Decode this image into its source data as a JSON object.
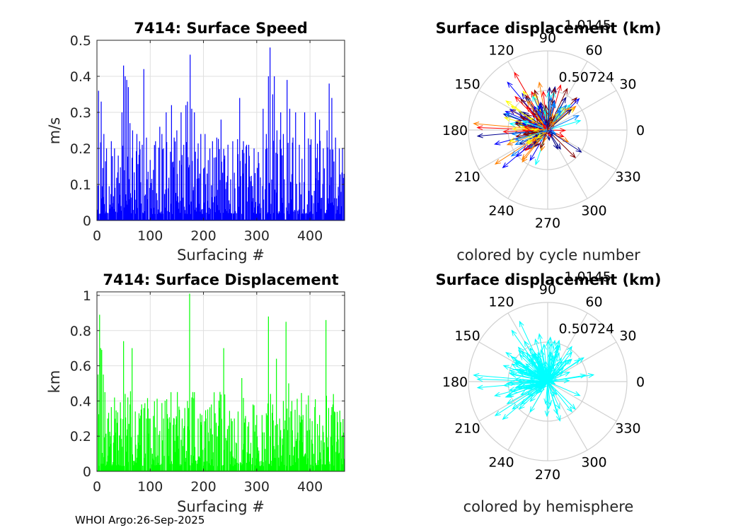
{
  "figure": {
    "footer": "WHOI Argo:26-Sep-2025"
  },
  "chart_data": [
    {
      "type": "bar",
      "id": "speed",
      "title": "7414: Surface Speed",
      "xlabel": "Surfacing #",
      "ylabel": "m/s",
      "xlim": [
        0,
        465
      ],
      "ylim": [
        0,
        0.5
      ],
      "xticks": [
        "0",
        "100",
        "200",
        "300",
        "400"
      ],
      "yticks": [
        "0",
        "0.1",
        "0.2",
        "0.3",
        "0.4",
        "0.5"
      ],
      "color": "#0000ff",
      "peaks": [
        [
          3,
          0.36
        ],
        [
          8,
          0.33
        ],
        [
          13,
          0.24
        ],
        [
          18,
          0.2
        ],
        [
          27,
          0.22
        ],
        [
          33,
          0.2
        ],
        [
          40,
          0.18
        ],
        [
          47,
          0.3
        ],
        [
          50,
          0.43
        ],
        [
          53,
          0.4
        ],
        [
          56,
          0.39
        ],
        [
          59,
          0.37
        ],
        [
          62,
          0.27
        ],
        [
          67,
          0.25
        ],
        [
          75,
          0.24
        ],
        [
          85,
          0.21
        ],
        [
          88,
          0.42
        ],
        [
          93,
          0.23
        ],
        [
          110,
          0.22
        ],
        [
          118,
          0.26
        ],
        [
          122,
          0.24
        ],
        [
          125,
          0.2
        ],
        [
          130,
          0.3
        ],
        [
          140,
          0.32
        ],
        [
          145,
          0.23
        ],
        [
          150,
          0.25
        ],
        [
          158,
          0.3
        ],
        [
          163,
          0.21
        ],
        [
          167,
          0.32
        ],
        [
          170,
          0.33
        ],
        [
          175,
          0.46
        ],
        [
          178,
          0.31
        ],
        [
          183,
          0.3
        ],
        [
          195,
          0.24
        ],
        [
          203,
          0.24
        ],
        [
          212,
          0.2
        ],
        [
          217,
          0.22
        ],
        [
          225,
          0.23
        ],
        [
          233,
          0.28
        ],
        [
          240,
          0.18
        ],
        [
          255,
          0.22
        ],
        [
          268,
          0.34
        ],
        [
          275,
          0.22
        ],
        [
          285,
          0.21
        ],
        [
          295,
          0.2
        ],
        [
          303,
          0.19
        ],
        [
          312,
          0.31
        ],
        [
          318,
          0.24
        ],
        [
          322,
          0.4
        ],
        [
          325,
          0.48
        ],
        [
          330,
          0.35
        ],
        [
          333,
          0.4
        ],
        [
          338,
          0.25
        ],
        [
          345,
          0.3
        ],
        [
          350,
          0.24
        ],
        [
          357,
          0.39
        ],
        [
          362,
          0.31
        ],
        [
          368,
          0.23
        ],
        [
          373,
          0.3
        ],
        [
          380,
          0.21
        ],
        [
          390,
          0.3
        ],
        [
          400,
          0.21
        ],
        [
          410,
          0.3
        ],
        [
          418,
          0.28
        ],
        [
          425,
          0.2
        ],
        [
          432,
          0.25
        ],
        [
          436,
          0.38
        ],
        [
          441,
          0.34
        ],
        [
          448,
          0.23
        ],
        [
          455,
          0.2
        ],
        [
          461,
          0.2
        ]
      ],
      "base": 0.06
    },
    {
      "type": "polar-quiver",
      "id": "rose_cycle",
      "title": "Surface displacement (km)",
      "caption": "colored by cycle number",
      "rmax": 1.0145,
      "ring_labels": [
        "0.50724",
        "1.0145"
      ],
      "angle_labels": [
        "0",
        "30",
        "60",
        "90",
        "120",
        "150",
        "180",
        "210",
        "240",
        "270",
        "300",
        "330"
      ],
      "colormap": [
        "#00008f",
        "#0000ff",
        "#0080ff",
        "#00ffff",
        "#ffff00",
        "#ff8000",
        "#ff0000",
        "#800000"
      ],
      "highlight_arrows": [
        [
          175,
          0.95
        ],
        [
          178,
          0.9
        ],
        [
          120,
          0.85
        ],
        [
          130,
          0.8
        ],
        [
          145,
          0.65
        ],
        [
          220,
          0.75
        ],
        [
          213,
          0.8
        ],
        [
          185,
          0.9
        ],
        [
          160,
          0.6
        ],
        [
          100,
          0.62
        ],
        [
          315,
          0.5
        ],
        [
          200,
          0.55
        ],
        [
          195,
          0.7
        ],
        [
          240,
          0.45
        ],
        [
          60,
          0.35
        ]
      ]
    },
    {
      "type": "bar",
      "id": "displacement",
      "title": "7414: Surface Displacement",
      "xlabel": "Surfacing #",
      "ylabel": "km",
      "xlim": [
        0,
        465
      ],
      "ylim": [
        0,
        1.02
      ],
      "xticks": [
        "0",
        "100",
        "200",
        "300",
        "400"
      ],
      "yticks": [
        "0",
        "0.2",
        "0.4",
        "0.6",
        "0.8",
        "1"
      ],
      "color": "#00ff00",
      "peaks": [
        [
          2,
          0.55
        ],
        [
          5,
          0.89
        ],
        [
          7,
          0.7
        ],
        [
          9,
          0.69
        ],
        [
          12,
          0.55
        ],
        [
          15,
          0.45
        ],
        [
          20,
          0.3
        ],
        [
          25,
          0.2
        ],
        [
          35,
          0.22
        ],
        [
          45,
          0.3
        ],
        [
          50,
          0.74
        ],
        [
          53,
          0.44
        ],
        [
          58,
          0.42
        ],
        [
          62,
          0.38
        ],
        [
          66,
          0.7
        ],
        [
          72,
          0.34
        ],
        [
          80,
          0.3
        ],
        [
          88,
          0.36
        ],
        [
          93,
          0.3
        ],
        [
          100,
          0.3
        ],
        [
          110,
          0.25
        ],
        [
          118,
          0.23
        ],
        [
          125,
          0.3
        ],
        [
          133,
          0.3
        ],
        [
          139,
          0.45
        ],
        [
          145,
          0.3
        ],
        [
          150,
          0.3
        ],
        [
          155,
          0.35
        ],
        [
          160,
          0.3
        ],
        [
          165,
          0.36
        ],
        [
          170,
          0.4
        ],
        [
          174,
          1.01
        ],
        [
          178,
          0.42
        ],
        [
          183,
          0.45
        ],
        [
          190,
          0.3
        ],
        [
          197,
          0.32
        ],
        [
          205,
          0.3
        ],
        [
          215,
          0.38
        ],
        [
          222,
          0.33
        ],
        [
          230,
          0.36
        ],
        [
          238,
          0.7
        ],
        [
          245,
          0.24
        ],
        [
          252,
          0.3
        ],
        [
          258,
          0.3
        ],
        [
          265,
          0.34
        ],
        [
          272,
          0.53
        ],
        [
          278,
          0.3
        ],
        [
          285,
          0.28
        ],
        [
          293,
          0.38
        ],
        [
          300,
          0.32
        ],
        [
          310,
          0.32
        ],
        [
          318,
          0.33
        ],
        [
          322,
          0.88
        ],
        [
          326,
          0.44
        ],
        [
          330,
          0.38
        ],
        [
          337,
          0.64
        ],
        [
          343,
          0.3
        ],
        [
          350,
          0.4
        ],
        [
          355,
          0.85
        ],
        [
          360,
          0.5
        ],
        [
          366,
          0.4
        ],
        [
          372,
          0.35
        ],
        [
          380,
          0.32
        ],
        [
          387,
          0.32
        ],
        [
          393,
          0.38
        ],
        [
          400,
          0.3
        ],
        [
          410,
          0.41
        ],
        [
          418,
          0.32
        ],
        [
          424,
          0.26
        ],
        [
          430,
          0.86
        ],
        [
          435,
          0.36
        ],
        [
          440,
          0.32
        ],
        [
          446,
          0.34
        ],
        [
          452,
          0.28
        ],
        [
          458,
          0.28
        ],
        [
          463,
          0.22
        ]
      ],
      "base": 0.1
    },
    {
      "type": "polar-quiver",
      "id": "rose_hemi",
      "title": "Surface displacement (km)",
      "caption": "colored by hemisphere",
      "rmax": 1.0145,
      "ring_labels": [
        "0.50724",
        "1.0145"
      ],
      "angle_labels": [
        "0",
        "30",
        "60",
        "90",
        "120",
        "150",
        "180",
        "210",
        "240",
        "270",
        "300",
        "330"
      ],
      "colormap": [
        "#00ffff"
      ],
      "highlight_arrows": [
        [
          175,
          0.95
        ],
        [
          178,
          0.9
        ],
        [
          115,
          0.85
        ],
        [
          125,
          0.8
        ],
        [
          145,
          0.65
        ],
        [
          220,
          0.75
        ],
        [
          213,
          0.8
        ],
        [
          185,
          0.9
        ],
        [
          160,
          0.6
        ],
        [
          100,
          0.62
        ],
        [
          315,
          0.5
        ],
        [
          200,
          0.55
        ],
        [
          195,
          0.7
        ],
        [
          240,
          0.45
        ],
        [
          60,
          0.35
        ]
      ]
    }
  ]
}
